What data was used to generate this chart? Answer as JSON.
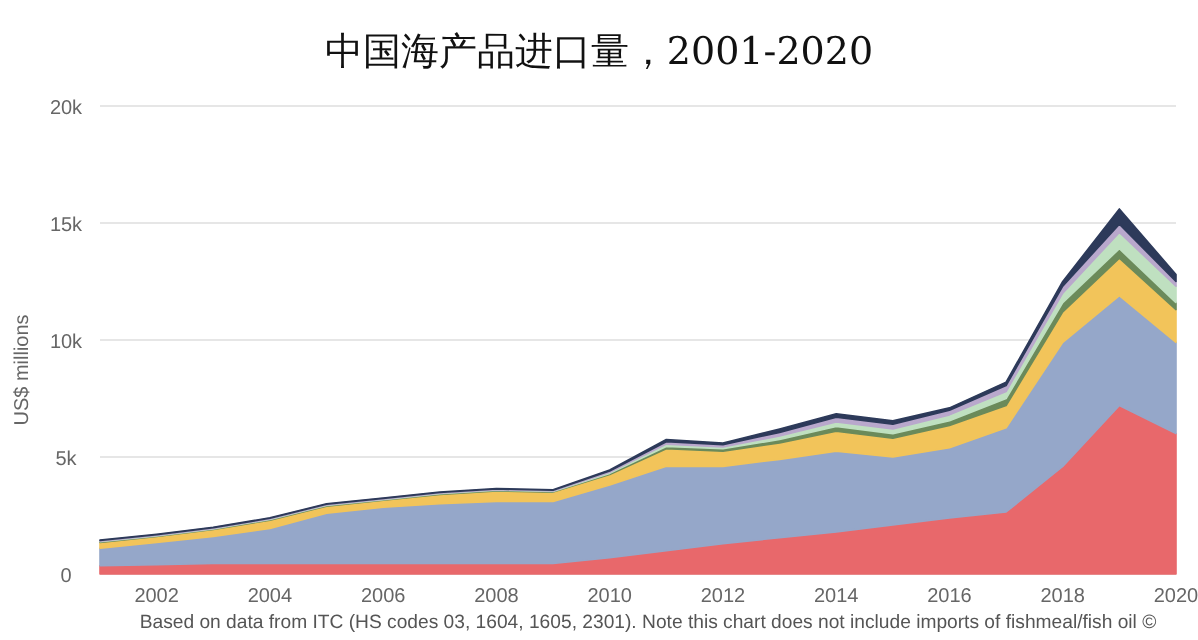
{
  "chart_data": {
    "type": "area",
    "stacked": true,
    "grid": "y",
    "title": "中国海产品进口量，2001-2020",
    "ylabel": "US$ millions",
    "annotations": [
      "Based on data from ITC (HS codes 03, 1604, 1605, 2301). Note this chart does not include imports of fishmeal/fish oil ©"
    ],
    "x": [
      2001,
      2002,
      2003,
      2004,
      2005,
      2006,
      2007,
      2008,
      2009,
      2010,
      2011,
      2012,
      2013,
      2014,
      2015,
      2016,
      2017,
      2018,
      2019,
      2020
    ],
    "xlim": [
      2001,
      2020
    ],
    "xticks": [
      2002,
      2004,
      2006,
      2008,
      2010,
      2012,
      2014,
      2016,
      2018,
      2020
    ],
    "ylim": [
      0,
      20000
    ],
    "yticks": [
      {
        "value": 0,
        "label": "0"
      },
      {
        "value": 5000,
        "label": "5k"
      },
      {
        "value": 10000,
        "label": "10k"
      },
      {
        "value": 15000,
        "label": "15k"
      },
      {
        "value": 20000,
        "label": "20k"
      }
    ],
    "series": [
      {
        "color": "#e8686b",
        "values": [
          350,
          400,
          450,
          450,
          450,
          450,
          450,
          450,
          450,
          700,
          1000,
          1300,
          1550,
          1800,
          2100,
          2400,
          2650,
          4600,
          7200,
          6000
        ]
      },
      {
        "color": "#95a7c9",
        "values": [
          750,
          950,
          1150,
          1500,
          2150,
          2400,
          2550,
          2650,
          2650,
          3100,
          3600,
          3300,
          3350,
          3450,
          2900,
          3000,
          3600,
          5300,
          4700,
          3900
        ]
      },
      {
        "color": "#f2c45a",
        "values": [
          250,
          250,
          300,
          350,
          300,
          300,
          400,
          450,
          400,
          450,
          750,
          650,
          700,
          850,
          800,
          950,
          950,
          1300,
          1600,
          1400
        ]
      },
      {
        "color": "#6b8a5a",
        "values": [
          30,
          30,
          30,
          30,
          30,
          30,
          30,
          30,
          30,
          50,
          100,
          100,
          150,
          200,
          200,
          200,
          300,
          400,
          400,
          300
        ]
      },
      {
        "color": "#bfe0c0",
        "values": [
          20,
          20,
          20,
          20,
          20,
          20,
          20,
          20,
          20,
          50,
          100,
          80,
          150,
          200,
          200,
          250,
          300,
          400,
          700,
          700
        ]
      },
      {
        "color": "#b9a8cc",
        "values": [
          30,
          30,
          30,
          30,
          30,
          30,
          30,
          30,
          30,
          50,
          100,
          100,
          150,
          200,
          200,
          200,
          250,
          300,
          350,
          200
        ]
      },
      {
        "color": "#2d3a5a",
        "values": [
          20,
          20,
          20,
          20,
          20,
          20,
          20,
          20,
          20,
          50,
          100,
          70,
          150,
          150,
          150,
          100,
          150,
          200,
          650,
          300
        ]
      }
    ]
  }
}
